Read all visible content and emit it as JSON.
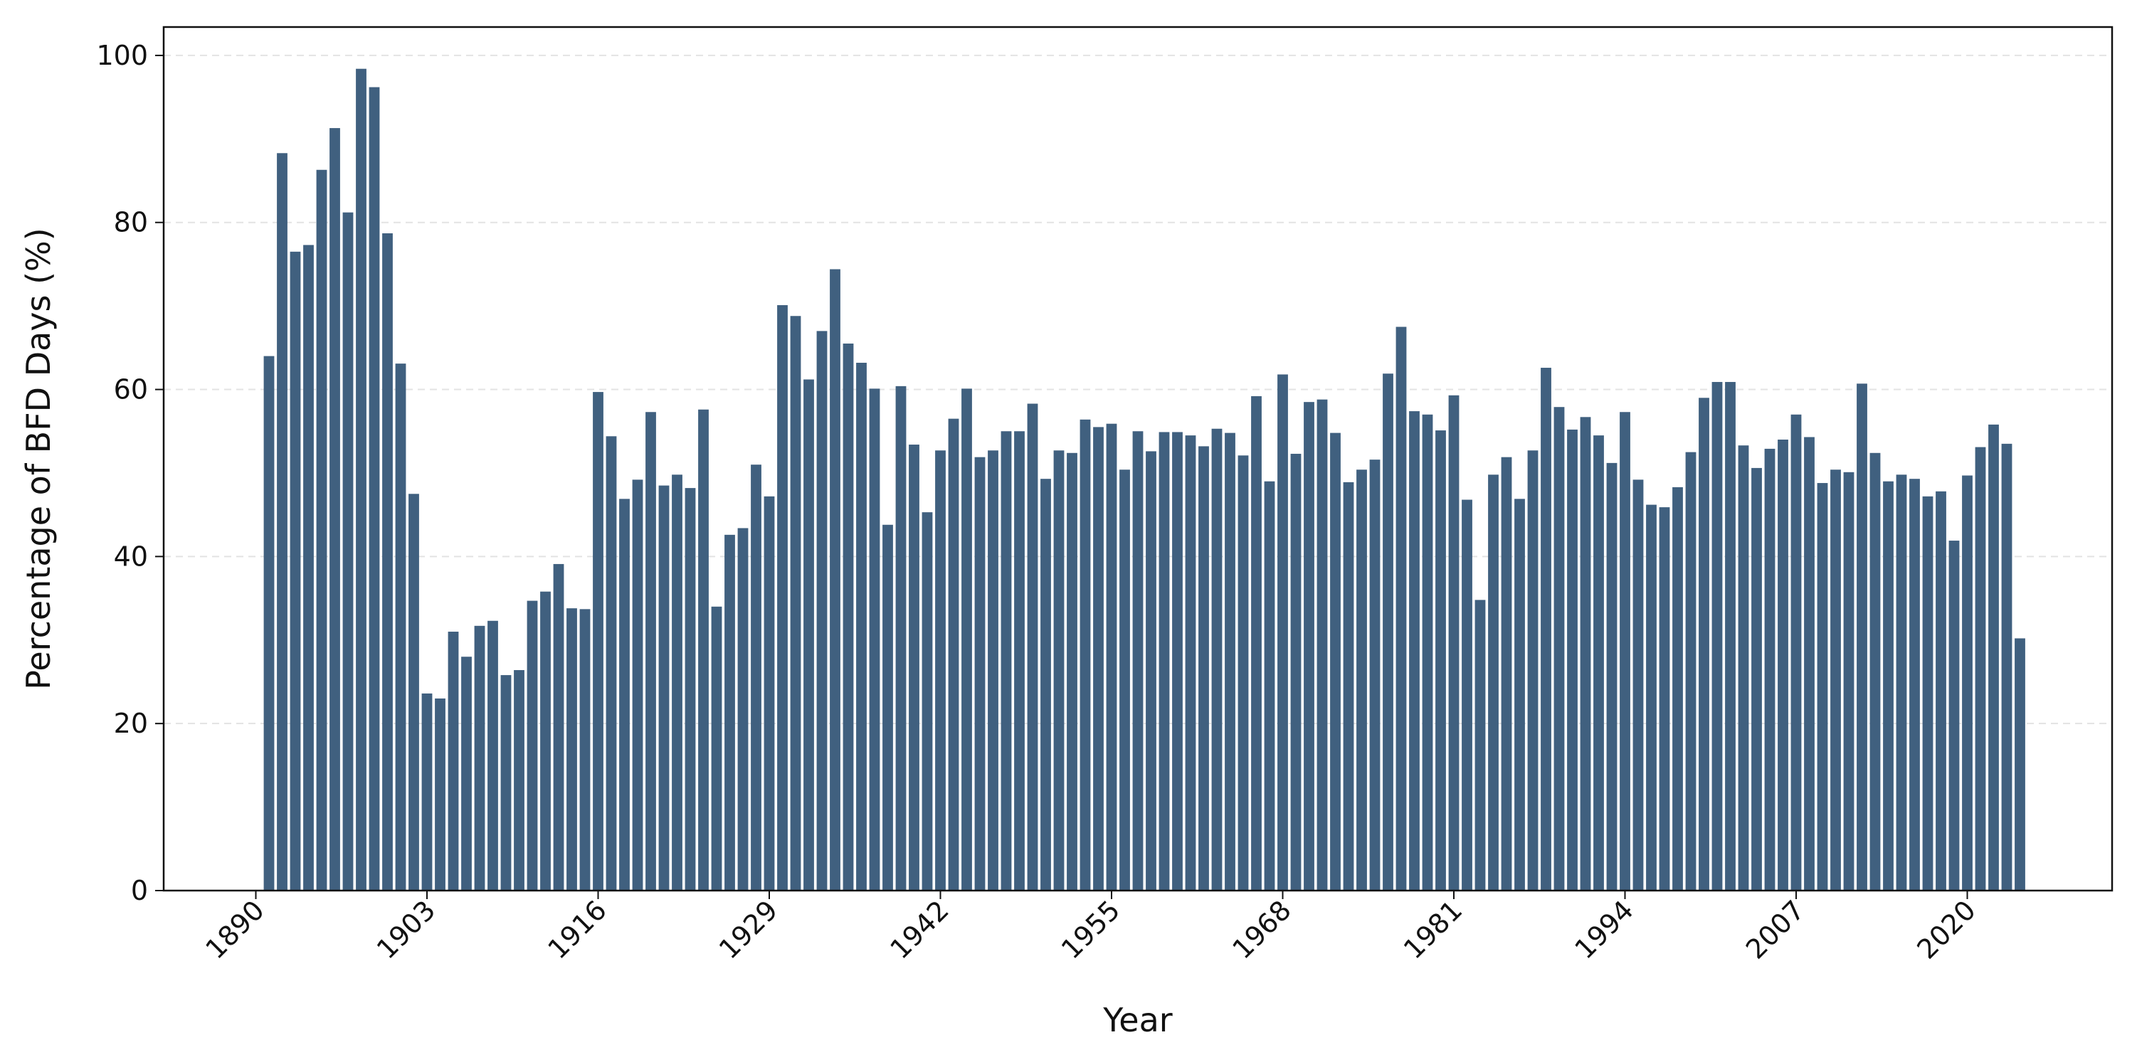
{
  "chart_data": {
    "type": "bar",
    "xlabel": "Year",
    "ylabel": "Percentage of BFD Days (%)",
    "x": [
      1891,
      1892,
      1893,
      1894,
      1895,
      1896,
      1897,
      1898,
      1899,
      1900,
      1901,
      1902,
      1903,
      1904,
      1905,
      1906,
      1907,
      1908,
      1909,
      1910,
      1911,
      1912,
      1913,
      1914,
      1915,
      1916,
      1917,
      1918,
      1919,
      1920,
      1921,
      1922,
      1923,
      1924,
      1925,
      1926,
      1927,
      1928,
      1929,
      1930,
      1931,
      1932,
      1933,
      1934,
      1935,
      1936,
      1937,
      1938,
      1939,
      1940,
      1941,
      1942,
      1943,
      1944,
      1945,
      1946,
      1947,
      1948,
      1949,
      1950,
      1951,
      1952,
      1953,
      1954,
      1955,
      1956,
      1957,
      1958,
      1959,
      1960,
      1961,
      1962,
      1963,
      1964,
      1965,
      1966,
      1967,
      1968,
      1969,
      1970,
      1971,
      1972,
      1973,
      1974,
      1975,
      1976,
      1977,
      1978,
      1979,
      1980,
      1981,
      1982,
      1983,
      1984,
      1985,
      1986,
      1987,
      1988,
      1989,
      1990,
      1991,
      1992,
      1993,
      1994,
      1995,
      1996,
      1997,
      1998,
      1999,
      2000,
      2001,
      2002,
      2003,
      2004,
      2005,
      2006,
      2007,
      2008,
      2009,
      2010,
      2011,
      2012,
      2013,
      2014,
      2015,
      2016,
      2017,
      2018,
      2019,
      2020,
      2021,
      2022,
      2023,
      2024
    ],
    "values": [
      64.0,
      88.3,
      76.5,
      77.3,
      86.3,
      91.3,
      81.2,
      98.4,
      96.2,
      78.7,
      63.1,
      47.5,
      23.6,
      23.0,
      31.0,
      28.0,
      31.7,
      32.3,
      25.8,
      26.4,
      34.7,
      35.8,
      39.1,
      33.8,
      33.7,
      59.7,
      54.4,
      46.9,
      49.2,
      57.3,
      48.5,
      49.8,
      48.2,
      57.6,
      34.0,
      42.6,
      43.4,
      51.0,
      47.2,
      70.1,
      68.8,
      61.2,
      67.0,
      74.4,
      65.5,
      63.2,
      60.1,
      43.8,
      60.4,
      53.4,
      45.3,
      52.7,
      56.5,
      60.1,
      51.9,
      52.7,
      55.0,
      55.0,
      58.3,
      49.3,
      52.7,
      52.4,
      56.4,
      55.5,
      55.9,
      50.4,
      55.0,
      52.6,
      54.9,
      54.9,
      54.5,
      53.2,
      55.3,
      54.8,
      52.1,
      59.2,
      49.0,
      61.8,
      52.3,
      58.5,
      58.8,
      54.8,
      48.9,
      50.4,
      51.6,
      61.9,
      67.5,
      57.4,
      57.0,
      55.1,
      59.3,
      46.8,
      34.8,
      49.8,
      51.9,
      46.9,
      52.7,
      62.6,
      57.9,
      55.2,
      56.7,
      54.5,
      51.2,
      57.3,
      49.2,
      46.2,
      45.9,
      48.3,
      52.5,
      59.0,
      60.9,
      60.9,
      53.3,
      50.6,
      52.9,
      54.0,
      57.0,
      54.3,
      48.8,
      50.4,
      50.1,
      60.7,
      52.4,
      49.0,
      49.8,
      49.3,
      47.2,
      47.8,
      41.9,
      49.7,
      53.1,
      55.8,
      53.5,
      30.2
    ],
    "color": "#40607f",
    "xlim": [
      1883,
      2031
    ],
    "xticks": [
      1890,
      1903,
      1916,
      1929,
      1942,
      1955,
      1968,
      1981,
      1994,
      2007,
      2020
    ],
    "ylim": [
      0,
      103.4
    ],
    "yticks": [
      0,
      20,
      40,
      60,
      80,
      100
    ],
    "grid": true
  }
}
